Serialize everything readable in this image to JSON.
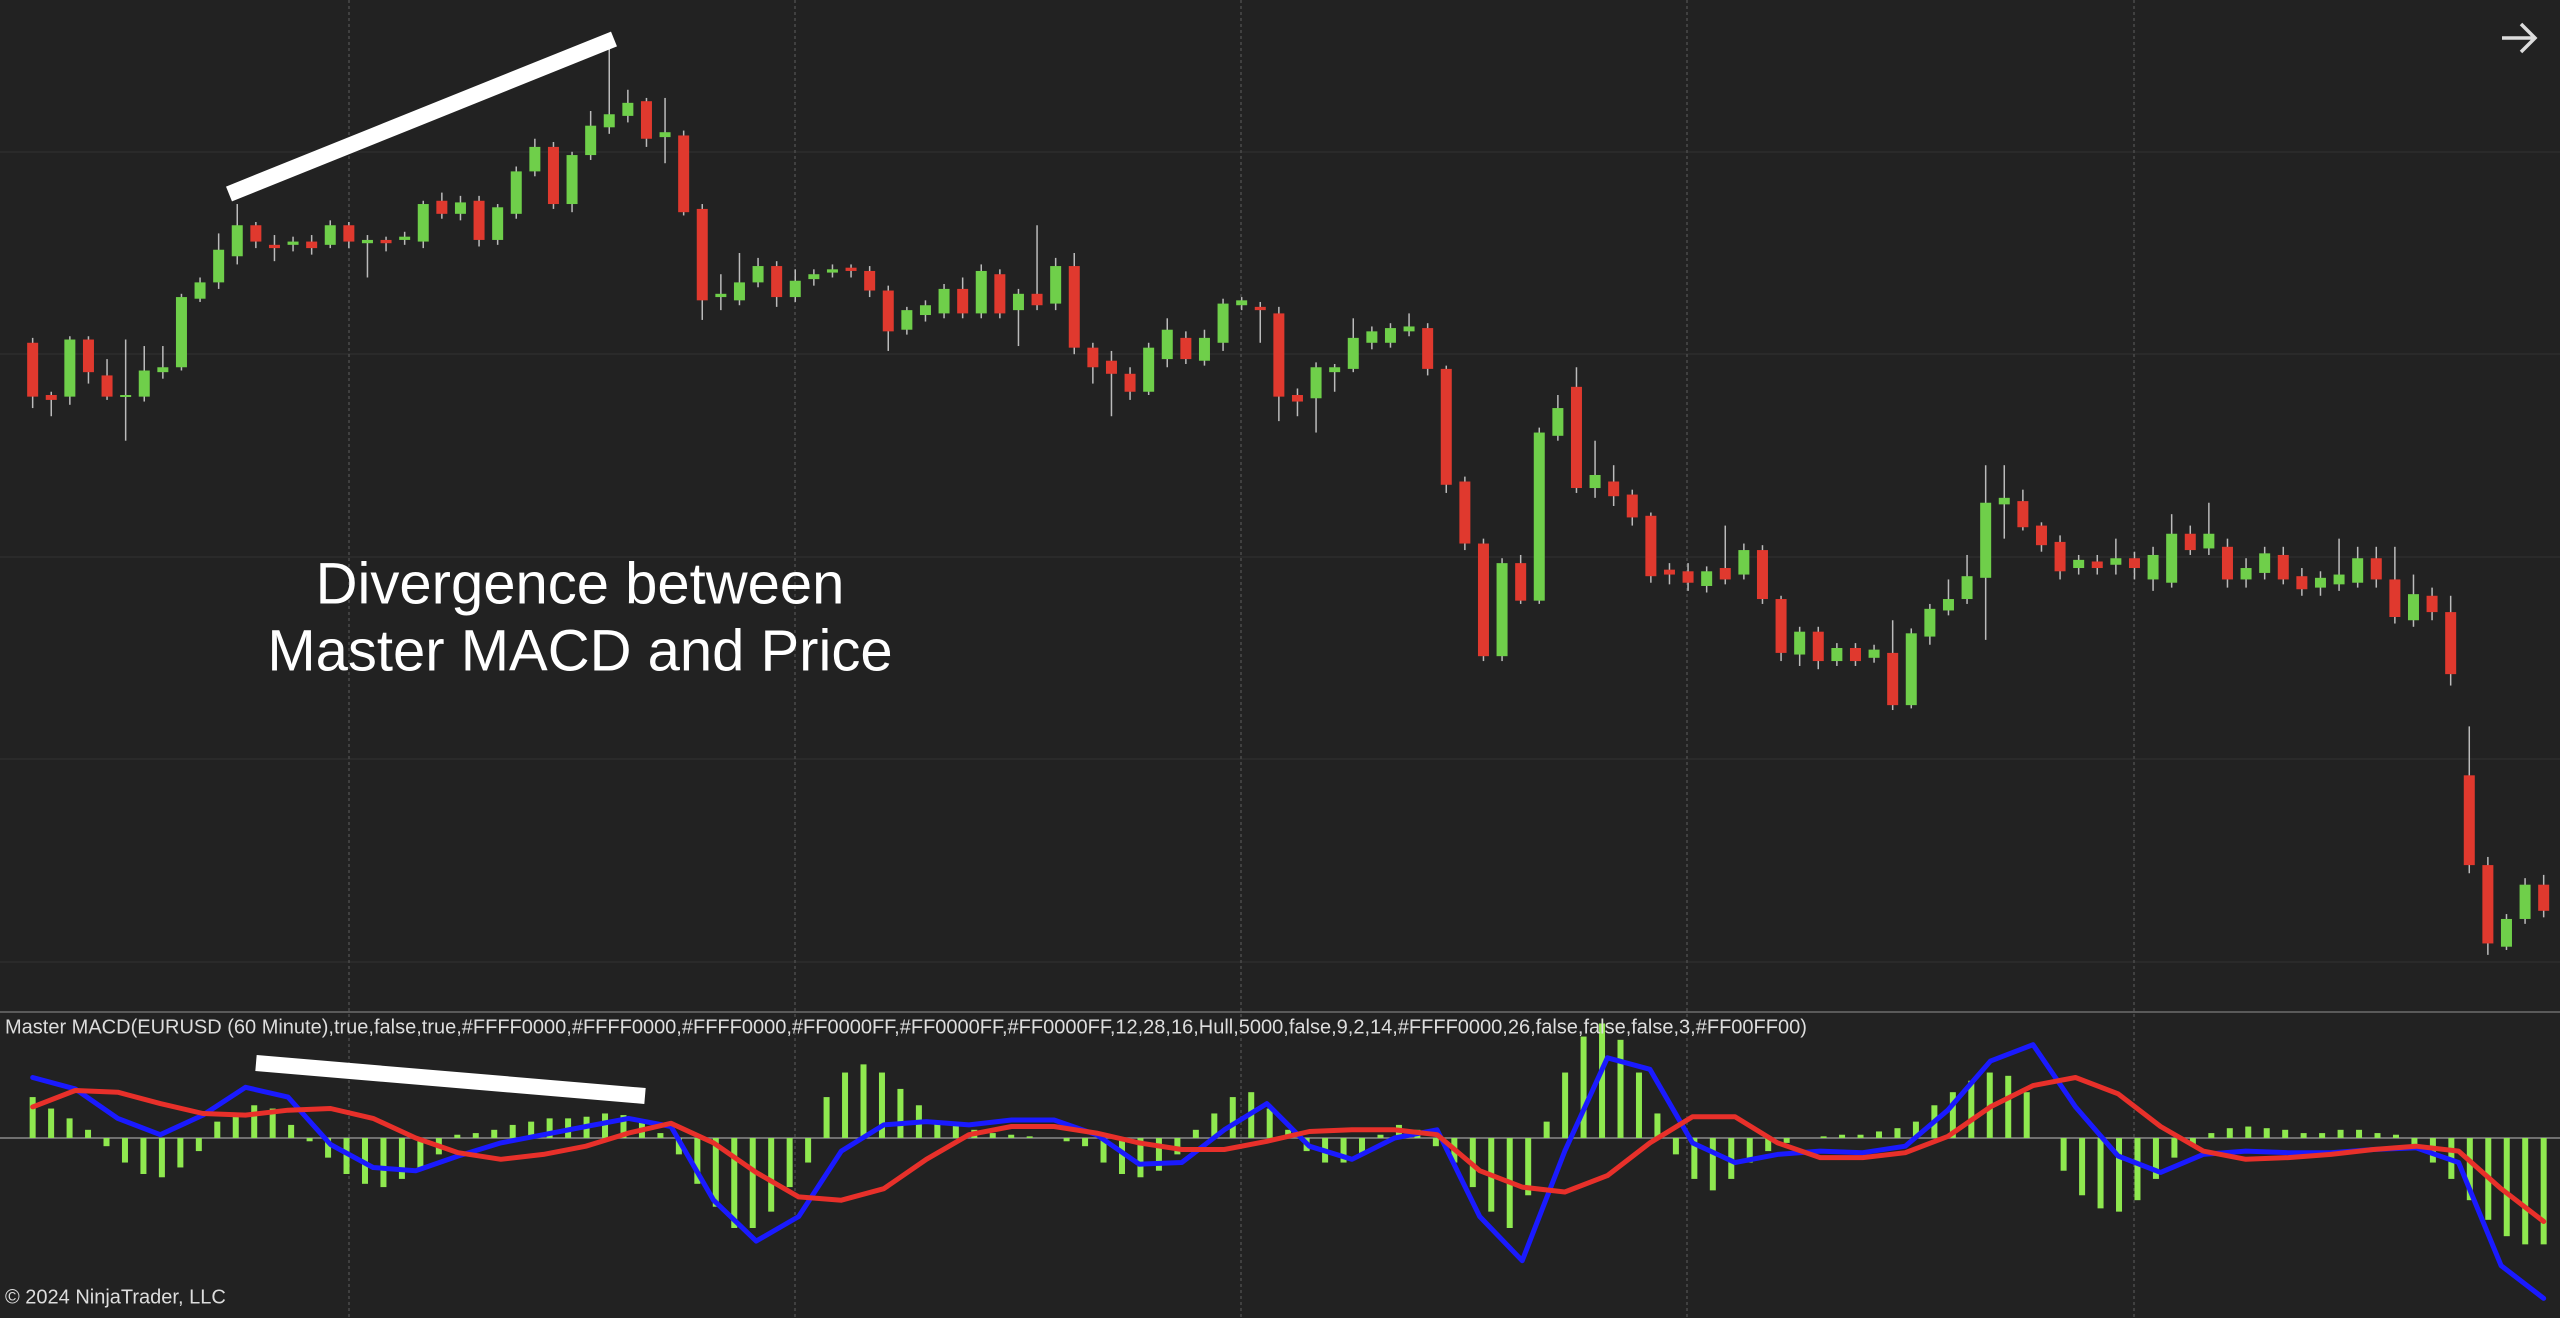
{
  "chart_data": [
    {
      "type": "candlestick",
      "up_color": "#6fcf4a",
      "down_color": "#e0392e",
      "ylim": [
        0,
        620
      ],
      "annotation": [
        "Divergence between",
        "Master MACD and Price"
      ],
      "ohlc": [
        [
          410,
          413,
          370,
          377
        ],
        [
          378,
          380,
          365,
          375
        ],
        [
          377,
          414,
          372,
          412
        ],
        [
          412,
          414,
          385,
          392
        ],
        [
          390,
          400,
          375,
          377
        ],
        [
          377,
          412,
          350,
          378
        ],
        [
          377,
          408,
          374,
          393
        ],
        [
          392,
          408,
          388,
          395
        ],
        [
          395,
          440,
          393,
          438
        ],
        [
          437,
          450,
          435,
          447
        ],
        [
          447,
          477,
          443,
          467
        ],
        [
          463,
          495,
          458,
          482
        ],
        [
          482,
          484,
          468,
          472
        ],
        [
          470,
          476,
          460,
          468
        ],
        [
          470,
          475,
          466,
          472
        ],
        [
          472,
          476,
          464,
          468
        ],
        [
          470,
          485,
          468,
          482
        ],
        [
          482,
          484,
          468,
          472
        ],
        [
          471,
          476,
          450,
          473
        ],
        [
          473,
          475,
          466,
          471
        ],
        [
          473,
          478,
          470,
          475
        ],
        [
          472,
          497,
          468,
          495
        ],
        [
          497,
          502,
          486,
          489
        ],
        [
          489,
          500,
          485,
          496
        ],
        [
          497,
          500,
          469,
          473
        ],
        [
          473,
          495,
          470,
          493
        ],
        [
          489,
          518,
          486,
          515
        ],
        [
          515,
          535,
          512,
          530
        ],
        [
          530,
          533,
          492,
          495
        ],
        [
          495,
          527,
          490,
          525
        ],
        [
          525,
          552,
          522,
          543
        ],
        [
          542,
          590,
          538,
          550
        ],
        [
          549,
          565,
          545,
          557
        ],
        [
          558,
          560,
          530,
          535
        ],
        [
          536,
          560,
          520,
          539
        ],
        [
          537,
          540,
          488,
          490
        ],
        [
          492,
          495,
          424,
          436
        ],
        [
          438,
          452,
          430,
          440
        ],
        [
          436,
          465,
          433,
          447
        ],
        [
          447,
          462,
          444,
          457
        ],
        [
          457,
          460,
          432,
          438
        ],
        [
          438,
          455,
          435,
          448
        ],
        [
          449,
          455,
          445,
          452
        ],
        [
          453,
          458,
          450,
          455
        ],
        [
          456,
          458,
          450,
          454
        ],
        [
          454,
          457,
          438,
          442
        ],
        [
          442,
          445,
          405,
          417
        ],
        [
          418,
          432,
          415,
          430
        ],
        [
          427,
          436,
          423,
          433
        ],
        [
          428,
          446,
          425,
          443
        ],
        [
          443,
          450,
          425,
          428
        ],
        [
          428,
          458,
          425,
          454
        ],
        [
          452,
          455,
          425,
          428
        ],
        [
          430,
          443,
          408,
          440
        ],
        [
          440,
          482,
          430,
          433
        ],
        [
          434,
          462,
          430,
          457
        ],
        [
          457,
          465,
          403,
          407
        ],
        [
          407,
          410,
          385,
          395
        ],
        [
          399,
          405,
          365,
          391
        ],
        [
          391,
          395,
          375,
          380
        ],
        [
          380,
          410,
          378,
          407
        ],
        [
          400,
          425,
          395,
          418
        ],
        [
          413,
          417,
          397,
          400
        ],
        [
          399,
          418,
          396,
          413
        ],
        [
          410,
          437,
          405,
          434
        ],
        [
          433,
          438,
          430,
          436
        ],
        [
          432,
          435,
          410,
          430
        ],
        [
          428,
          432,
          362,
          377
        ],
        [
          378,
          382,
          365,
          374
        ],
        [
          376,
          398,
          355,
          395
        ],
        [
          392,
          397,
          380,
          395
        ],
        [
          394,
          425,
          392,
          413
        ],
        [
          410,
          420,
          406,
          417
        ],
        [
          410,
          422,
          407,
          419
        ],
        [
          417,
          428,
          414,
          420
        ],
        [
          419,
          422,
          390,
          394
        ],
        [
          394,
          396,
          318,
          323
        ],
        [
          325,
          328,
          283,
          287
        ],
        [
          287,
          290,
          215,
          218
        ],
        [
          218,
          278,
          215,
          275
        ],
        [
          275,
          280,
          250,
          252
        ],
        [
          252,
          358,
          250,
          355
        ],
        [
          353,
          378,
          350,
          370
        ],
        [
          383,
          395,
          318,
          321
        ],
        [
          321,
          350,
          315,
          329
        ],
        [
          325,
          335,
          310,
          316
        ],
        [
          317,
          320,
          298,
          303
        ],
        [
          304,
          306,
          263,
          267
        ],
        [
          271,
          275,
          262,
          268
        ],
        [
          270,
          275,
          258,
          263
        ],
        [
          261,
          273,
          257,
          270
        ],
        [
          272,
          298,
          262,
          265
        ],
        [
          268,
          287,
          265,
          283
        ],
        [
          283,
          286,
          250,
          253
        ],
        [
          253,
          255,
          215,
          220
        ],
        [
          219,
          236,
          212,
          233
        ],
        [
          233,
          236,
          210,
          215
        ],
        [
          215,
          226,
          212,
          223
        ],
        [
          223,
          226,
          212,
          215
        ],
        [
          217,
          225,
          214,
          222
        ],
        [
          220,
          240,
          185,
          188
        ],
        [
          188,
          235,
          186,
          232
        ],
        [
          230,
          250,
          225,
          247
        ],
        [
          246,
          265,
          243,
          253
        ],
        [
          253,
          280,
          250,
          267
        ],
        [
          266,
          335,
          228,
          312
        ],
        [
          311,
          335,
          290,
          315
        ],
        [
          313,
          320,
          295,
          297
        ],
        [
          298,
          300,
          282,
          286
        ],
        [
          288,
          292,
          265,
          270
        ],
        [
          272,
          280,
          268,
          277
        ],
        [
          276,
          280,
          268,
          272
        ],
        [
          274,
          290,
          268,
          278
        ],
        [
          278,
          282,
          265,
          272
        ],
        [
          265,
          285,
          258,
          280
        ],
        [
          263,
          305,
          260,
          293
        ],
        [
          293,
          298,
          280,
          283
        ],
        [
          284,
          312,
          280,
          293
        ],
        [
          285,
          290,
          260,
          265
        ],
        [
          265,
          278,
          260,
          272
        ],
        [
          269,
          285,
          265,
          281
        ],
        [
          280,
          285,
          262,
          265
        ],
        [
          267,
          272,
          255,
          259
        ],
        [
          260,
          270,
          255,
          266
        ],
        [
          262,
          290,
          258,
          268
        ],
        [
          263,
          285,
          260,
          278
        ],
        [
          278,
          285,
          260,
          265
        ],
        [
          265,
          285,
          238,
          242
        ],
        [
          240,
          268,
          236,
          256
        ],
        [
          255,
          260,
          240,
          245
        ],
        [
          245,
          255,
          200,
          207
        ],
        [
          145,
          175,
          85,
          90
        ],
        [
          90,
          95,
          35,
          42
        ],
        [
          40,
          60,
          38,
          57
        ],
        [
          57,
          82,
          54,
          78
        ],
        [
          78,
          84,
          58,
          62
        ]
      ]
    },
    {
      "type": "macd",
      "title": "Master MACD(EURUSD (60 Minute),true,false,true,#FFFF0000,#FFFF0000,#FFFF0000,#FF0000FF,#FF0000FF,#FF0000FF,12,28,16,Hull,5000,false,9,2,14,#FFFF0000,26,false,false,false,3,#FF00FF00)",
      "ylim": [
        -110,
        77
      ],
      "histogram": {
        "color": "#8fe84f",
        "values": [
          25,
          18,
          12,
          5,
          -5,
          -15,
          -22,
          -24,
          -18,
          -8,
          10,
          15,
          20,
          18,
          8,
          -2,
          -12,
          -22,
          -28,
          -30,
          -25,
          -18,
          -10,
          2,
          3,
          5,
          8,
          10,
          12,
          12,
          13,
          15,
          14,
          10,
          3,
          -10,
          -28,
          -42,
          -55,
          -55,
          -45,
          -30,
          -15,
          25,
          40,
          45,
          40,
          30,
          20,
          10,
          8,
          5,
          3,
          2,
          1,
          0,
          -2,
          -5,
          -15,
          -22,
          -24,
          -20,
          -10,
          5,
          15,
          25,
          28,
          18,
          5,
          -8,
          -15,
          -15,
          -10,
          2,
          8,
          5,
          -5,
          -15,
          -30,
          -45,
          -55,
          -35,
          10,
          40,
          62,
          70,
          60,
          40,
          15,
          -10,
          -25,
          -32,
          -25,
          -15,
          -8,
          -3,
          0,
          1,
          2,
          2,
          4,
          6,
          10,
          20,
          28,
          35,
          40,
          38,
          28,
          0,
          -20,
          -35,
          -43,
          -45,
          -38,
          -25,
          -12,
          -5,
          3,
          6,
          7,
          6,
          5,
          3,
          3,
          5,
          5,
          3,
          2,
          -5,
          -15,
          -25,
          -38,
          -50,
          -60,
          -65,
          -65
        ]
      },
      "series": [
        {
          "color": "#1a1aff",
          "values": [
            37,
            30,
            12,
            2,
            14,
            31,
            25,
            -4,
            -18,
            -20,
            -11,
            -3,
            2,
            7,
            12,
            7,
            -38,
            -63,
            -48,
            -8,
            8,
            10,
            8,
            11,
            11,
            2,
            -16,
            -15,
            5,
            21,
            -5,
            -13,
            0,
            5,
            -48,
            -75,
            -8,
            49,
            42,
            -3,
            -15,
            -10,
            -8,
            -9,
            -5,
            17,
            47,
            57,
            19,
            -11,
            -21,
            -10,
            -8,
            -9,
            -9,
            -7,
            -6,
            -15,
            -78,
            -98
          ]
        },
        {
          "color": "#e8302a",
          "values": [
            19,
            29,
            28,
            21,
            15,
            14,
            17,
            18,
            12,
            0,
            -9,
            -13,
            -10,
            -5,
            3,
            9,
            -3,
            -21,
            -36,
            -38,
            -31,
            -13,
            2,
            7,
            7,
            3,
            -3,
            -7,
            -7,
            -2,
            4,
            5,
            5,
            2,
            -20,
            -30,
            -33,
            -23,
            -3,
            13,
            13,
            -3,
            -12,
            -12,
            -9,
            1,
            19,
            32,
            37,
            27,
            7,
            -8,
            -13,
            -12,
            -10,
            -7,
            -5,
            -8,
            -31,
            -51
          ]
        }
      ]
    }
  ],
  "footer": "© 2024 NinjaTrader, LLC"
}
